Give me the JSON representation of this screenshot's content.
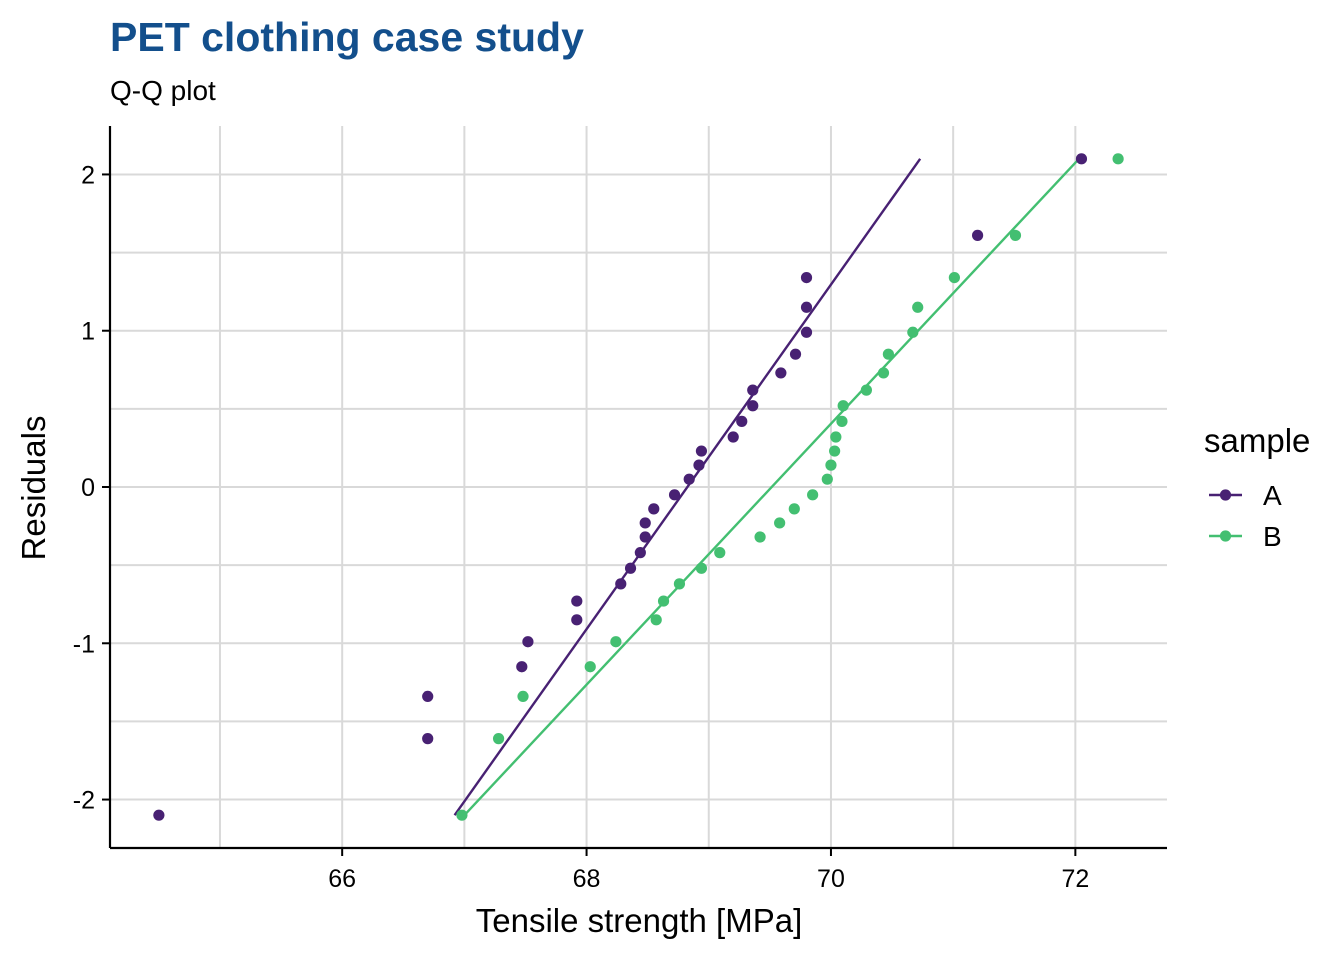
{
  "chart_data": {
    "type": "scatter",
    "title": "PET clothing case study",
    "subtitle": "Q-Q plot",
    "xlabel": "Tensile strength [MPa]",
    "ylabel": "Residuals",
    "xlim": [
      64.1,
      72.75
    ],
    "ylim": [
      -2.31,
      2.31
    ],
    "x_ticks": [
      66,
      68,
      70,
      72
    ],
    "y_ticks": [
      -2,
      -1,
      0,
      1,
      2
    ],
    "grid": true,
    "legend": {
      "title": "sample",
      "position": "right"
    },
    "colors": {
      "A": "#482173",
      "B": "#43bf71",
      "title": "#134f8c",
      "grid": "#d9d9d9"
    },
    "series": [
      {
        "name": "A",
        "points": [
          [
            64.5,
            -2.1
          ],
          [
            66.7,
            -1.61
          ],
          [
            66.7,
            -1.34
          ],
          [
            67.47,
            -1.15
          ],
          [
            67.52,
            -0.99
          ],
          [
            67.92,
            -0.85
          ],
          [
            67.92,
            -0.73
          ],
          [
            68.28,
            -0.62
          ],
          [
            68.36,
            -0.52
          ],
          [
            68.44,
            -0.42
          ],
          [
            68.48,
            -0.32
          ],
          [
            68.48,
            -0.23
          ],
          [
            68.55,
            -0.14
          ],
          [
            68.72,
            -0.05
          ],
          [
            68.84,
            0.05
          ],
          [
            68.92,
            0.14
          ],
          [
            68.94,
            0.23
          ],
          [
            69.2,
            0.32
          ],
          [
            69.27,
            0.42
          ],
          [
            69.36,
            0.52
          ],
          [
            69.36,
            0.62
          ],
          [
            69.59,
            0.73
          ],
          [
            69.71,
            0.85
          ],
          [
            69.8,
            0.99
          ],
          [
            69.8,
            1.15
          ],
          [
            69.8,
            1.34
          ],
          [
            71.2,
            1.61
          ],
          [
            72.05,
            2.1
          ]
        ],
        "line": [
          [
            66.92,
            -2.1
          ],
          [
            70.73,
            2.1
          ]
        ]
      },
      {
        "name": "B",
        "points": [
          [
            66.98,
            -2.1
          ],
          [
            67.28,
            -1.61
          ],
          [
            67.48,
            -1.34
          ],
          [
            68.03,
            -1.15
          ],
          [
            68.24,
            -0.99
          ],
          [
            68.57,
            -0.85
          ],
          [
            68.63,
            -0.73
          ],
          [
            68.76,
            -0.62
          ],
          [
            68.94,
            -0.52
          ],
          [
            69.09,
            -0.42
          ],
          [
            69.42,
            -0.32
          ],
          [
            69.58,
            -0.23
          ],
          [
            69.7,
            -0.14
          ],
          [
            69.85,
            -0.05
          ],
          [
            69.97,
            0.05
          ],
          [
            70.0,
            0.14
          ],
          [
            70.03,
            0.23
          ],
          [
            70.04,
            0.32
          ],
          [
            70.09,
            0.42
          ],
          [
            70.1,
            0.52
          ],
          [
            70.29,
            0.62
          ],
          [
            70.43,
            0.73
          ],
          [
            70.47,
            0.85
          ],
          [
            70.67,
            0.99
          ],
          [
            70.71,
            1.15
          ],
          [
            71.01,
            1.34
          ],
          [
            71.51,
            1.61
          ],
          [
            72.35,
            2.1
          ]
        ],
        "line": [
          [
            67.0,
            -2.1
          ],
          [
            72.03,
            2.1
          ]
        ]
      }
    ]
  }
}
